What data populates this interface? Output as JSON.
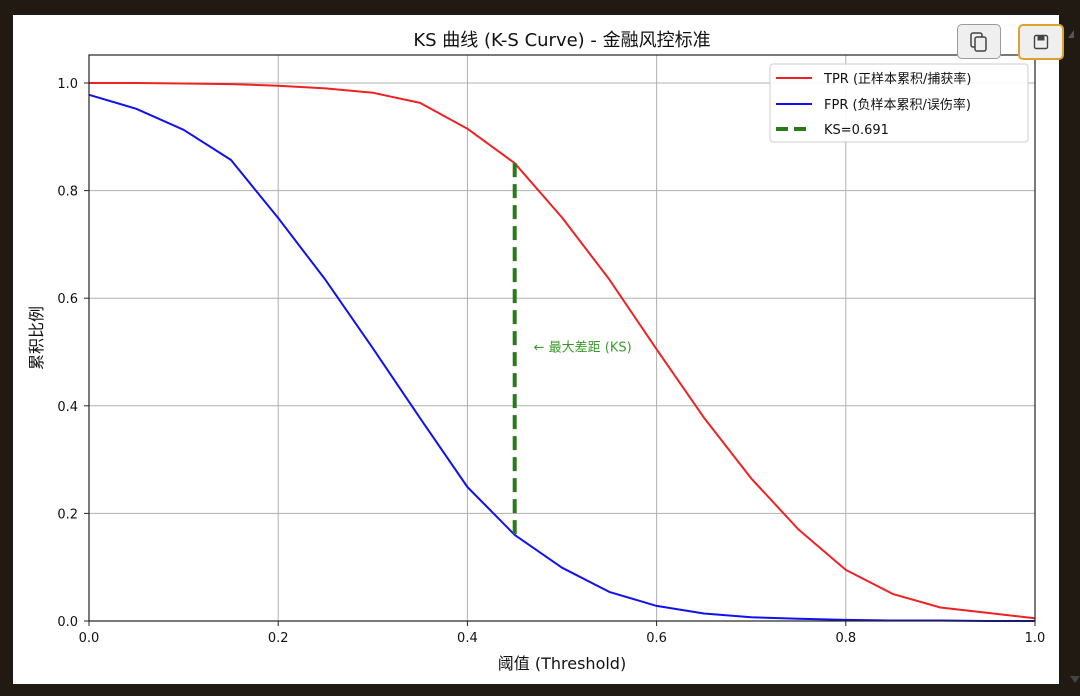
{
  "toolbar": {
    "copy_icon": "copy-icon",
    "save_icon": "floppy-disk-icon"
  },
  "chart_data": {
    "type": "line",
    "title": "KS 曲线 (K-S Curve) - 金融风控标准",
    "xlabel": "阈值 (Threshold)",
    "ylabel": "累积比例",
    "xlim": [
      0.0,
      1.0
    ],
    "ylim": [
      0.0,
      1.05
    ],
    "xticks": [
      "0.0",
      "0.2",
      "0.4",
      "0.6",
      "0.8",
      "1.0"
    ],
    "yticks": [
      "0.0",
      "0.2",
      "0.4",
      "0.6",
      "0.8",
      "1.0"
    ],
    "grid": true,
    "legend_position": "upper right",
    "x": [
      0.0,
      0.05,
      0.1,
      0.15,
      0.2,
      0.25,
      0.3,
      0.35,
      0.4,
      0.45,
      0.5,
      0.55,
      0.6,
      0.65,
      0.7,
      0.75,
      0.8,
      0.85,
      0.9,
      0.95,
      1.0
    ],
    "series": [
      {
        "name": "TPR (正样本累积/捕获率)",
        "color": "#ee2222",
        "values": [
          1.0,
          1.0,
          0.999,
          0.998,
          0.995,
          0.99,
          0.982,
          0.963,
          0.915,
          0.851,
          0.75,
          0.635,
          0.505,
          0.378,
          0.265,
          0.17,
          0.095,
          0.05,
          0.025,
          0.015,
          0.005
        ]
      },
      {
        "name": "FPR (负样本累积/误伤率)",
        "color": "#1111ee",
        "values": [
          0.978,
          0.952,
          0.913,
          0.857,
          0.749,
          0.634,
          0.507,
          0.377,
          0.249,
          0.16,
          0.099,
          0.054,
          0.028,
          0.014,
          0.007,
          0.004,
          0.002,
          0.001,
          0.001,
          0.0,
          0.0
        ]
      }
    ],
    "ks_line": {
      "name": "KS=0.691",
      "color": "#2a7a1a",
      "x": 0.45,
      "y_top": 0.851,
      "y_bottom": 0.16,
      "value": 0.691
    },
    "annotation": {
      "text": "← 最大差距 (KS)",
      "x": 0.47,
      "y": 0.51,
      "color": "#3a9a2a"
    }
  }
}
